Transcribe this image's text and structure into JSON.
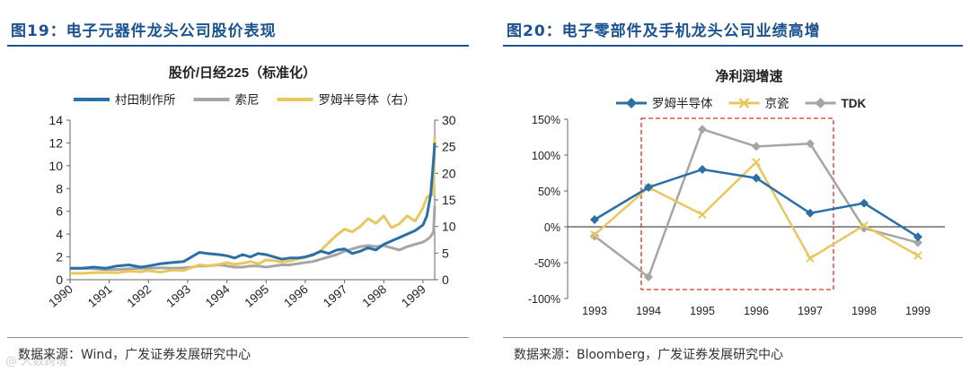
{
  "colors": {
    "navy": "#1a5390",
    "blue": "#2a6fa8",
    "gray": "#a5a5a5",
    "yellow": "#e8c75e",
    "red": "#d9312b"
  },
  "left": {
    "figure_title": "图19：电子元器件龙头公司股价表现",
    "source": "数据来源：Wind，广发证券发展研究中心",
    "watermark": "@ 人数跨境"
  },
  "right": {
    "figure_title": "图20：电子零部件及手机龙头公司业绩高增",
    "source": "数据来源：Bloomberg，广发证券发展研究中心"
  },
  "chart_data": [
    {
      "type": "line",
      "title": "股价/日经225（标准化）",
      "xlabel": "",
      "ylabel": "",
      "x_ticks": [
        "1990",
        "1991",
        "1992",
        "1993",
        "1994",
        "1995",
        "1996",
        "1997",
        "1998",
        "1999"
      ],
      "xlim": [
        1990,
        1999.3
      ],
      "ylim_left": [
        0,
        14
      ],
      "y_ticks_left": [
        0,
        2,
        4,
        6,
        8,
        10,
        12,
        14
      ],
      "ylim_right": [
        0,
        30
      ],
      "y_ticks_right": [
        0,
        5,
        10,
        15,
        20,
        25,
        30
      ],
      "grid": false,
      "legend_position": "top",
      "series": [
        {
          "name": "村田制作所",
          "axis": "left",
          "color": "#2a6fa8",
          "x": [
            1990.0,
            1990.3,
            1990.6,
            1990.9,
            1991.2,
            1991.5,
            1991.8,
            1992.0,
            1992.3,
            1992.6,
            1992.9,
            1993.1,
            1993.3,
            1993.5,
            1993.8,
            1994.0,
            1994.2,
            1994.4,
            1994.6,
            1994.8,
            1995.0,
            1995.2,
            1995.4,
            1995.6,
            1995.8,
            1996.0,
            1996.2,
            1996.4,
            1996.6,
            1996.8,
            1997.0,
            1997.2,
            1997.4,
            1997.6,
            1997.8,
            1998.0,
            1998.2,
            1998.4,
            1998.6,
            1998.8,
            1999.0,
            1999.1,
            1999.2,
            1999.27,
            1999.3
          ],
          "y": [
            1.0,
            1.0,
            1.1,
            1.0,
            1.2,
            1.3,
            1.1,
            1.2,
            1.4,
            1.5,
            1.6,
            2.0,
            2.4,
            2.3,
            2.2,
            2.1,
            1.9,
            2.2,
            2.0,
            2.3,
            2.2,
            2.0,
            1.8,
            1.9,
            1.9,
            2.0,
            2.2,
            2.5,
            2.3,
            2.6,
            2.7,
            2.3,
            2.5,
            2.8,
            2.6,
            3.1,
            3.4,
            3.7,
            4.0,
            4.3,
            4.8,
            5.6,
            7.5,
            10.5,
            12.0
          ]
        },
        {
          "name": "索尼",
          "axis": "left",
          "color": "#a5a5a5",
          "x": [
            1990.0,
            1990.3,
            1990.6,
            1990.9,
            1991.2,
            1991.5,
            1991.8,
            1992.0,
            1992.3,
            1992.6,
            1992.9,
            1993.1,
            1993.3,
            1993.5,
            1993.8,
            1994.0,
            1994.2,
            1994.4,
            1994.6,
            1994.8,
            1995.0,
            1995.2,
            1995.4,
            1995.6,
            1995.8,
            1996.0,
            1996.2,
            1996.4,
            1996.6,
            1996.8,
            1997.0,
            1997.2,
            1997.4,
            1997.6,
            1997.8,
            1998.0,
            1998.2,
            1998.4,
            1998.6,
            1998.8,
            1999.0,
            1999.1,
            1999.2,
            1999.27,
            1999.3
          ],
          "y": [
            1.0,
            1.0,
            0.95,
            0.9,
            0.9,
            0.95,
            1.0,
            1.0,
            1.05,
            1.0,
            1.05,
            1.1,
            1.2,
            1.2,
            1.3,
            1.2,
            1.1,
            1.1,
            1.2,
            1.2,
            1.1,
            1.2,
            1.3,
            1.3,
            1.4,
            1.5,
            1.6,
            1.8,
            2.0,
            2.2,
            2.5,
            2.7,
            2.9,
            3.0,
            2.9,
            3.0,
            2.8,
            2.6,
            2.9,
            3.1,
            3.3,
            3.5,
            3.8,
            4.2,
            6.5
          ]
        },
        {
          "name": "罗姆半导体（右）",
          "axis": "right",
          "color": "#e8c75e",
          "x": [
            1990.0,
            1990.3,
            1990.6,
            1990.9,
            1991.2,
            1991.5,
            1991.8,
            1992.0,
            1992.3,
            1992.6,
            1992.9,
            1993.1,
            1993.3,
            1993.5,
            1993.8,
            1994.0,
            1994.2,
            1994.4,
            1994.6,
            1994.8,
            1995.0,
            1995.2,
            1995.4,
            1995.6,
            1995.8,
            1996.0,
            1996.2,
            1996.4,
            1996.6,
            1996.8,
            1997.0,
            1997.2,
            1997.4,
            1997.6,
            1997.8,
            1998.0,
            1998.2,
            1998.4,
            1998.6,
            1998.8,
            1999.0,
            1999.1,
            1999.2,
            1999.27,
            1999.3
          ],
          "y": [
            1.2,
            1.2,
            1.3,
            1.4,
            1.3,
            1.6,
            1.5,
            1.7,
            1.4,
            1.8,
            1.7,
            2.3,
            2.8,
            2.6,
            2.9,
            3.2,
            2.9,
            3.1,
            3.4,
            3.0,
            3.7,
            3.6,
            3.3,
            3.5,
            3.9,
            4.2,
            4.6,
            5.5,
            7.0,
            8.4,
            9.5,
            9.0,
            10.0,
            11.5,
            10.6,
            12.0,
            9.8,
            10.5,
            12.0,
            11.0,
            13.5,
            15.5,
            16.0,
            16.0,
            27.0
          ]
        }
      ]
    },
    {
      "type": "line",
      "title": "净利润增速",
      "xlabel": "",
      "ylabel": "",
      "categories": [
        "1993",
        "1994",
        "1995",
        "1996",
        "1997",
        "1998",
        "1999"
      ],
      "ylim": [
        -100,
        150
      ],
      "y_ticks": [
        "-100%",
        "-50%",
        "0%",
        "50%",
        "100%",
        "150%"
      ],
      "grid": false,
      "legend_position": "top",
      "annotation": "red dashed rectangle highlighting 1994–1997",
      "series": [
        {
          "name": "罗姆半导体",
          "color": "#2a6fa8",
          "marker": "diamond",
          "values": [
            10,
            55,
            80,
            68,
            19,
            33,
            -14
          ]
        },
        {
          "name": "京瓷",
          "color": "#e8c75e",
          "marker": "x",
          "values": [
            -11,
            55,
            17,
            90,
            -44,
            2,
            -40
          ]
        },
        {
          "name": "TDK",
          "color": "#a5a5a5",
          "marker": "diamond",
          "values": [
            -13,
            -70,
            136,
            112,
            116,
            -2,
            -22
          ]
        }
      ]
    }
  ]
}
